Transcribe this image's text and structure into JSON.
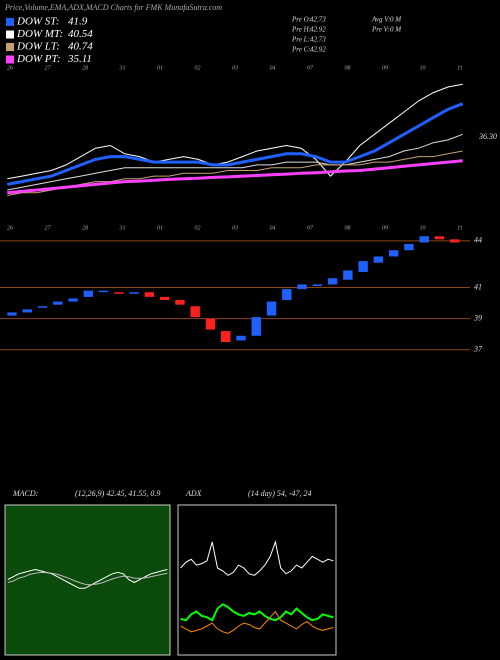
{
  "header": {
    "title": "Price,Volume,EMA,ADX,MACD Charts for FMK MunafaSutra.com",
    "legend": [
      {
        "name": "DOW ST:",
        "value": 41.9,
        "color": "#2060ff"
      },
      {
        "name": "DOW MT:",
        "value": 40.54,
        "color": "#ffffff"
      },
      {
        "name": "DOW LT:",
        "value": 40.74,
        "color": "#c8a070"
      },
      {
        "name": "DOW PT:",
        "value": 35.11,
        "color": "#ff40ff"
      }
    ],
    "stats": [
      {
        "label": "Pre O:",
        "value": 42.73
      },
      {
        "label": "Pre H:",
        "value": 42.92
      },
      {
        "label": "Pre L:",
        "value": 42.73
      },
      {
        "label": "Pre C:",
        "value": 42.92
      },
      {
        "label": "Avg V:",
        "value": "0 M"
      },
      {
        "label": "Pre V:",
        "value": "0 M"
      }
    ]
  },
  "chart_data": [
    {
      "type": "line",
      "date_labels": [
        "26",
        "27",
        "28",
        "31",
        "01",
        "02",
        "03",
        "04",
        "07",
        "08",
        "09",
        "10",
        "11"
      ],
      "ylim": [
        33.5,
        39.0
      ],
      "yticks": [
        {
          "value": 36.3,
          "label": "36.30"
        }
      ],
      "series": [
        {
          "name": "Price",
          "color": "#ffffff",
          "width": 1,
          "values": [
            34.8,
            34.9,
            35.0,
            35.1,
            35.3,
            35.6,
            35.9,
            36.0,
            35.7,
            35.6,
            35.4,
            35.5,
            35.6,
            35.5,
            35.3,
            35.4,
            35.6,
            35.8,
            35.9,
            36.0,
            35.9,
            35.5,
            34.9,
            35.4,
            36.0,
            36.4,
            36.8,
            37.2,
            37.6,
            37.9,
            38.1,
            38.2
          ]
        },
        {
          "name": "DOW ST",
          "color": "#2060ff",
          "width": 3,
          "values": [
            34.6,
            34.7,
            34.8,
            34.9,
            35.1,
            35.3,
            35.5,
            35.6,
            35.6,
            35.5,
            35.4,
            35.4,
            35.4,
            35.4,
            35.3,
            35.3,
            35.4,
            35.5,
            35.6,
            35.7,
            35.7,
            35.6,
            35.4,
            35.4,
            35.6,
            35.8,
            36.1,
            36.4,
            36.7,
            37.0,
            37.3,
            37.5
          ]
        },
        {
          "name": "DOW MT",
          "color": "#dddddd",
          "width": 1,
          "values": [
            34.4,
            34.5,
            34.6,
            34.7,
            34.8,
            34.9,
            35.0,
            35.1,
            35.2,
            35.2,
            35.2,
            35.2,
            35.2,
            35.2,
            35.2,
            35.2,
            35.2,
            35.3,
            35.3,
            35.4,
            35.4,
            35.4,
            35.3,
            35.3,
            35.4,
            35.5,
            35.6,
            35.8,
            35.9,
            36.1,
            36.2,
            36.4
          ]
        },
        {
          "name": "DOW LT",
          "color": "#c8a070",
          "width": 1,
          "values": [
            34.2,
            34.3,
            34.3,
            34.4,
            34.5,
            34.6,
            34.7,
            34.7,
            34.8,
            34.8,
            34.9,
            34.9,
            35.0,
            35.0,
            35.0,
            35.1,
            35.1,
            35.1,
            35.2,
            35.2,
            35.2,
            35.3,
            35.3,
            35.3,
            35.3,
            35.4,
            35.4,
            35.5,
            35.6,
            35.6,
            35.7,
            35.8
          ]
        },
        {
          "name": "DOW PT",
          "color": "#ff40ff",
          "width": 3,
          "values": [
            34.3,
            34.35,
            34.4,
            34.45,
            34.5,
            34.55,
            34.6,
            34.65,
            34.7,
            34.72,
            34.75,
            34.78,
            34.8,
            34.82,
            34.85,
            34.87,
            34.9,
            34.92,
            34.95,
            34.97,
            35.0,
            35.02,
            35.05,
            35.08,
            35.1,
            35.15,
            35.2,
            35.25,
            35.3,
            35.35,
            35.4,
            35.45
          ]
        }
      ]
    },
    {
      "type": "candlestick",
      "date_labels": [
        "26",
        "27",
        "28",
        "31",
        "01",
        "02",
        "03",
        "04",
        "07",
        "08",
        "09",
        "10",
        "11"
      ],
      "ylim": [
        35.7,
        44.7
      ],
      "yticks": [
        44,
        41,
        39,
        37
      ],
      "grid_color": "#8b4513",
      "up_color": "#2060ff",
      "down_color": "#ff2020",
      "open": [
        39.2,
        39.4,
        39.7,
        39.9,
        40.1,
        40.4,
        40.8,
        40.7,
        40.6,
        40.7,
        40.4,
        40.2,
        39.8,
        39.0,
        38.2,
        37.6,
        37.9,
        39.2,
        40.2,
        40.9,
        41.1,
        41.2,
        41.5,
        42.0,
        42.6,
        43.0,
        43.4,
        43.9,
        44.3,
        44.1
      ],
      "close": [
        39.4,
        39.6,
        39.8,
        40.1,
        40.3,
        40.8,
        40.8,
        40.6,
        40.7,
        40.4,
        40.2,
        39.9,
        39.1,
        38.3,
        37.5,
        37.9,
        39.1,
        40.1,
        40.9,
        41.2,
        41.2,
        41.6,
        42.1,
        42.7,
        43.0,
        43.4,
        43.8,
        44.3,
        44.1,
        43.9
      ]
    },
    {
      "type": "line",
      "title": "MACD:",
      "subtitle": "(12,26,9) 42.45, 41.55, 0.9",
      "ylim": [
        -2,
        3
      ],
      "series": [
        {
          "name": "MACD",
          "color": "#ffffff",
          "width": 1,
          "values": [
            0.6,
            0.7,
            0.8,
            0.85,
            0.9,
            0.95,
            0.9,
            0.85,
            0.8,
            0.7,
            0.6,
            0.5,
            0.4,
            0.3,
            0.3,
            0.4,
            0.5,
            0.6,
            0.7,
            0.8,
            0.85,
            0.8,
            0.6,
            0.5,
            0.6,
            0.7,
            0.8,
            0.85,
            0.9,
            0.95
          ]
        },
        {
          "name": "Signal",
          "color": "#bbbbbb",
          "width": 1,
          "values": [
            0.5,
            0.55,
            0.65,
            0.7,
            0.78,
            0.82,
            0.85,
            0.84,
            0.82,
            0.78,
            0.72,
            0.65,
            0.57,
            0.5,
            0.44,
            0.42,
            0.44,
            0.48,
            0.55,
            0.62,
            0.68,
            0.72,
            0.7,
            0.65,
            0.64,
            0.66,
            0.7,
            0.74,
            0.78,
            0.82
          ]
        }
      ]
    },
    {
      "type": "line",
      "title": "ADX",
      "subtitle": "(14 day) 54, -47, 24",
      "ylim": [
        0,
        100
      ],
      "series": [
        {
          "name": "ADX",
          "color": "#ffffff",
          "width": 1,
          "values": [
            60,
            64,
            66,
            62,
            63,
            65,
            78,
            60,
            58,
            55,
            57,
            62,
            60,
            56,
            55,
            58,
            62,
            68,
            78,
            60,
            56,
            58,
            62,
            60,
            64,
            68,
            66,
            64,
            66,
            65
          ]
        },
        {
          "name": "+DI",
          "color": "#00ff00",
          "width": 2,
          "values": [
            25,
            24,
            28,
            30,
            27,
            26,
            24,
            32,
            35,
            33,
            30,
            28,
            27,
            29,
            28,
            30,
            27,
            25,
            24,
            26,
            30,
            28,
            32,
            29,
            26,
            24,
            25,
            28,
            27,
            26
          ]
        },
        {
          "name": "-DI",
          "color": "#ff8c00",
          "width": 1,
          "values": [
            20,
            18,
            16,
            17,
            18,
            20,
            22,
            18,
            16,
            15,
            17,
            20,
            22,
            21,
            19,
            18,
            22,
            26,
            30,
            24,
            22,
            20,
            18,
            21,
            23,
            20,
            18,
            17,
            18,
            19
          ]
        }
      ]
    }
  ]
}
